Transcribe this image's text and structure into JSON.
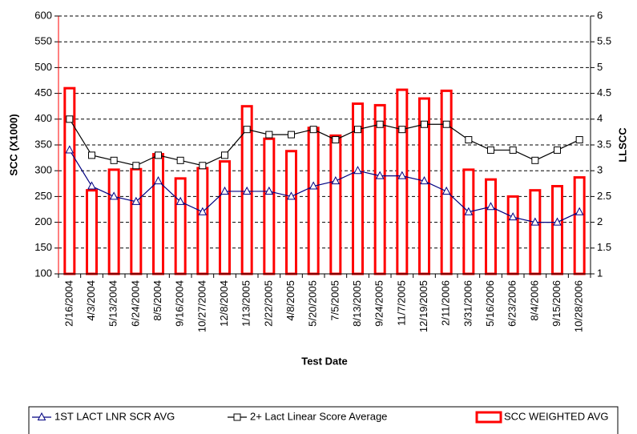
{
  "chart_data": {
    "type": "bar-line",
    "x_label": "Test Date",
    "y_label": "SCC (X1000)",
    "y2_label": "LLSCC",
    "categories": [
      "2/16/2004",
      "4/3/2004",
      "5/13/2004",
      "6/24/2004",
      "8/5/2004",
      "9/16/2004",
      "10/27/2004",
      "12/8/2004",
      "1/13/2005",
      "2/22/2005",
      "4/8/2005",
      "5/20/2005",
      "7/5/2005",
      "8/13/2005",
      "9/24/2005",
      "11/7/2005",
      "12/19/2005",
      "2/11/2006",
      "3/31/2006",
      "5/16/2006",
      "6/23/2006",
      "8/4/2006",
      "9/15/2006",
      "10/28/2006"
    ],
    "series": [
      {
        "name": "1ST LACT LNR SCR AVG",
        "type": "line",
        "marker": "triangle",
        "color": "#000080",
        "axis": "y2",
        "values": [
          3.4,
          2.7,
          2.5,
          2.4,
          2.8,
          2.4,
          2.2,
          2.6,
          2.6,
          2.6,
          2.5,
          2.7,
          2.8,
          3.0,
          2.9,
          2.9,
          2.8,
          2.6,
          2.2,
          2.3,
          2.1,
          2.0,
          2.0,
          2.2
        ]
      },
      {
        "name": "2+ Lact Linear Score Average",
        "type": "line",
        "marker": "square",
        "color": "#000000",
        "axis": "y2",
        "values": [
          4.0,
          3.3,
          3.2,
          3.1,
          3.3,
          3.2,
          3.1,
          3.3,
          3.8,
          3.7,
          3.7,
          3.8,
          3.6,
          3.8,
          3.9,
          3.8,
          3.9,
          3.9,
          3.6,
          3.4,
          3.4,
          3.2,
          3.4,
          3.6
        ]
      },
      {
        "name": "SCC WEIGHTED AVG",
        "type": "bar",
        "color": "#ff0000",
        "axis": "y",
        "values": [
          460,
          262,
          302,
          303,
          332,
          285,
          305,
          318,
          425,
          362,
          338,
          383,
          368,
          430,
          427,
          457,
          440,
          455,
          302,
          283,
          250,
          262,
          270,
          287
        ]
      }
    ],
    "ylim": [
      100,
      600
    ],
    "yticks": [
      100,
      150,
      200,
      250,
      300,
      350,
      400,
      450,
      500,
      550,
      600
    ],
    "y2lim": [
      1,
      6
    ],
    "y2ticks": [
      1,
      1.5,
      2,
      2.5,
      3,
      3.5,
      4,
      4.5,
      5,
      5.5,
      6
    ],
    "grid": true
  }
}
